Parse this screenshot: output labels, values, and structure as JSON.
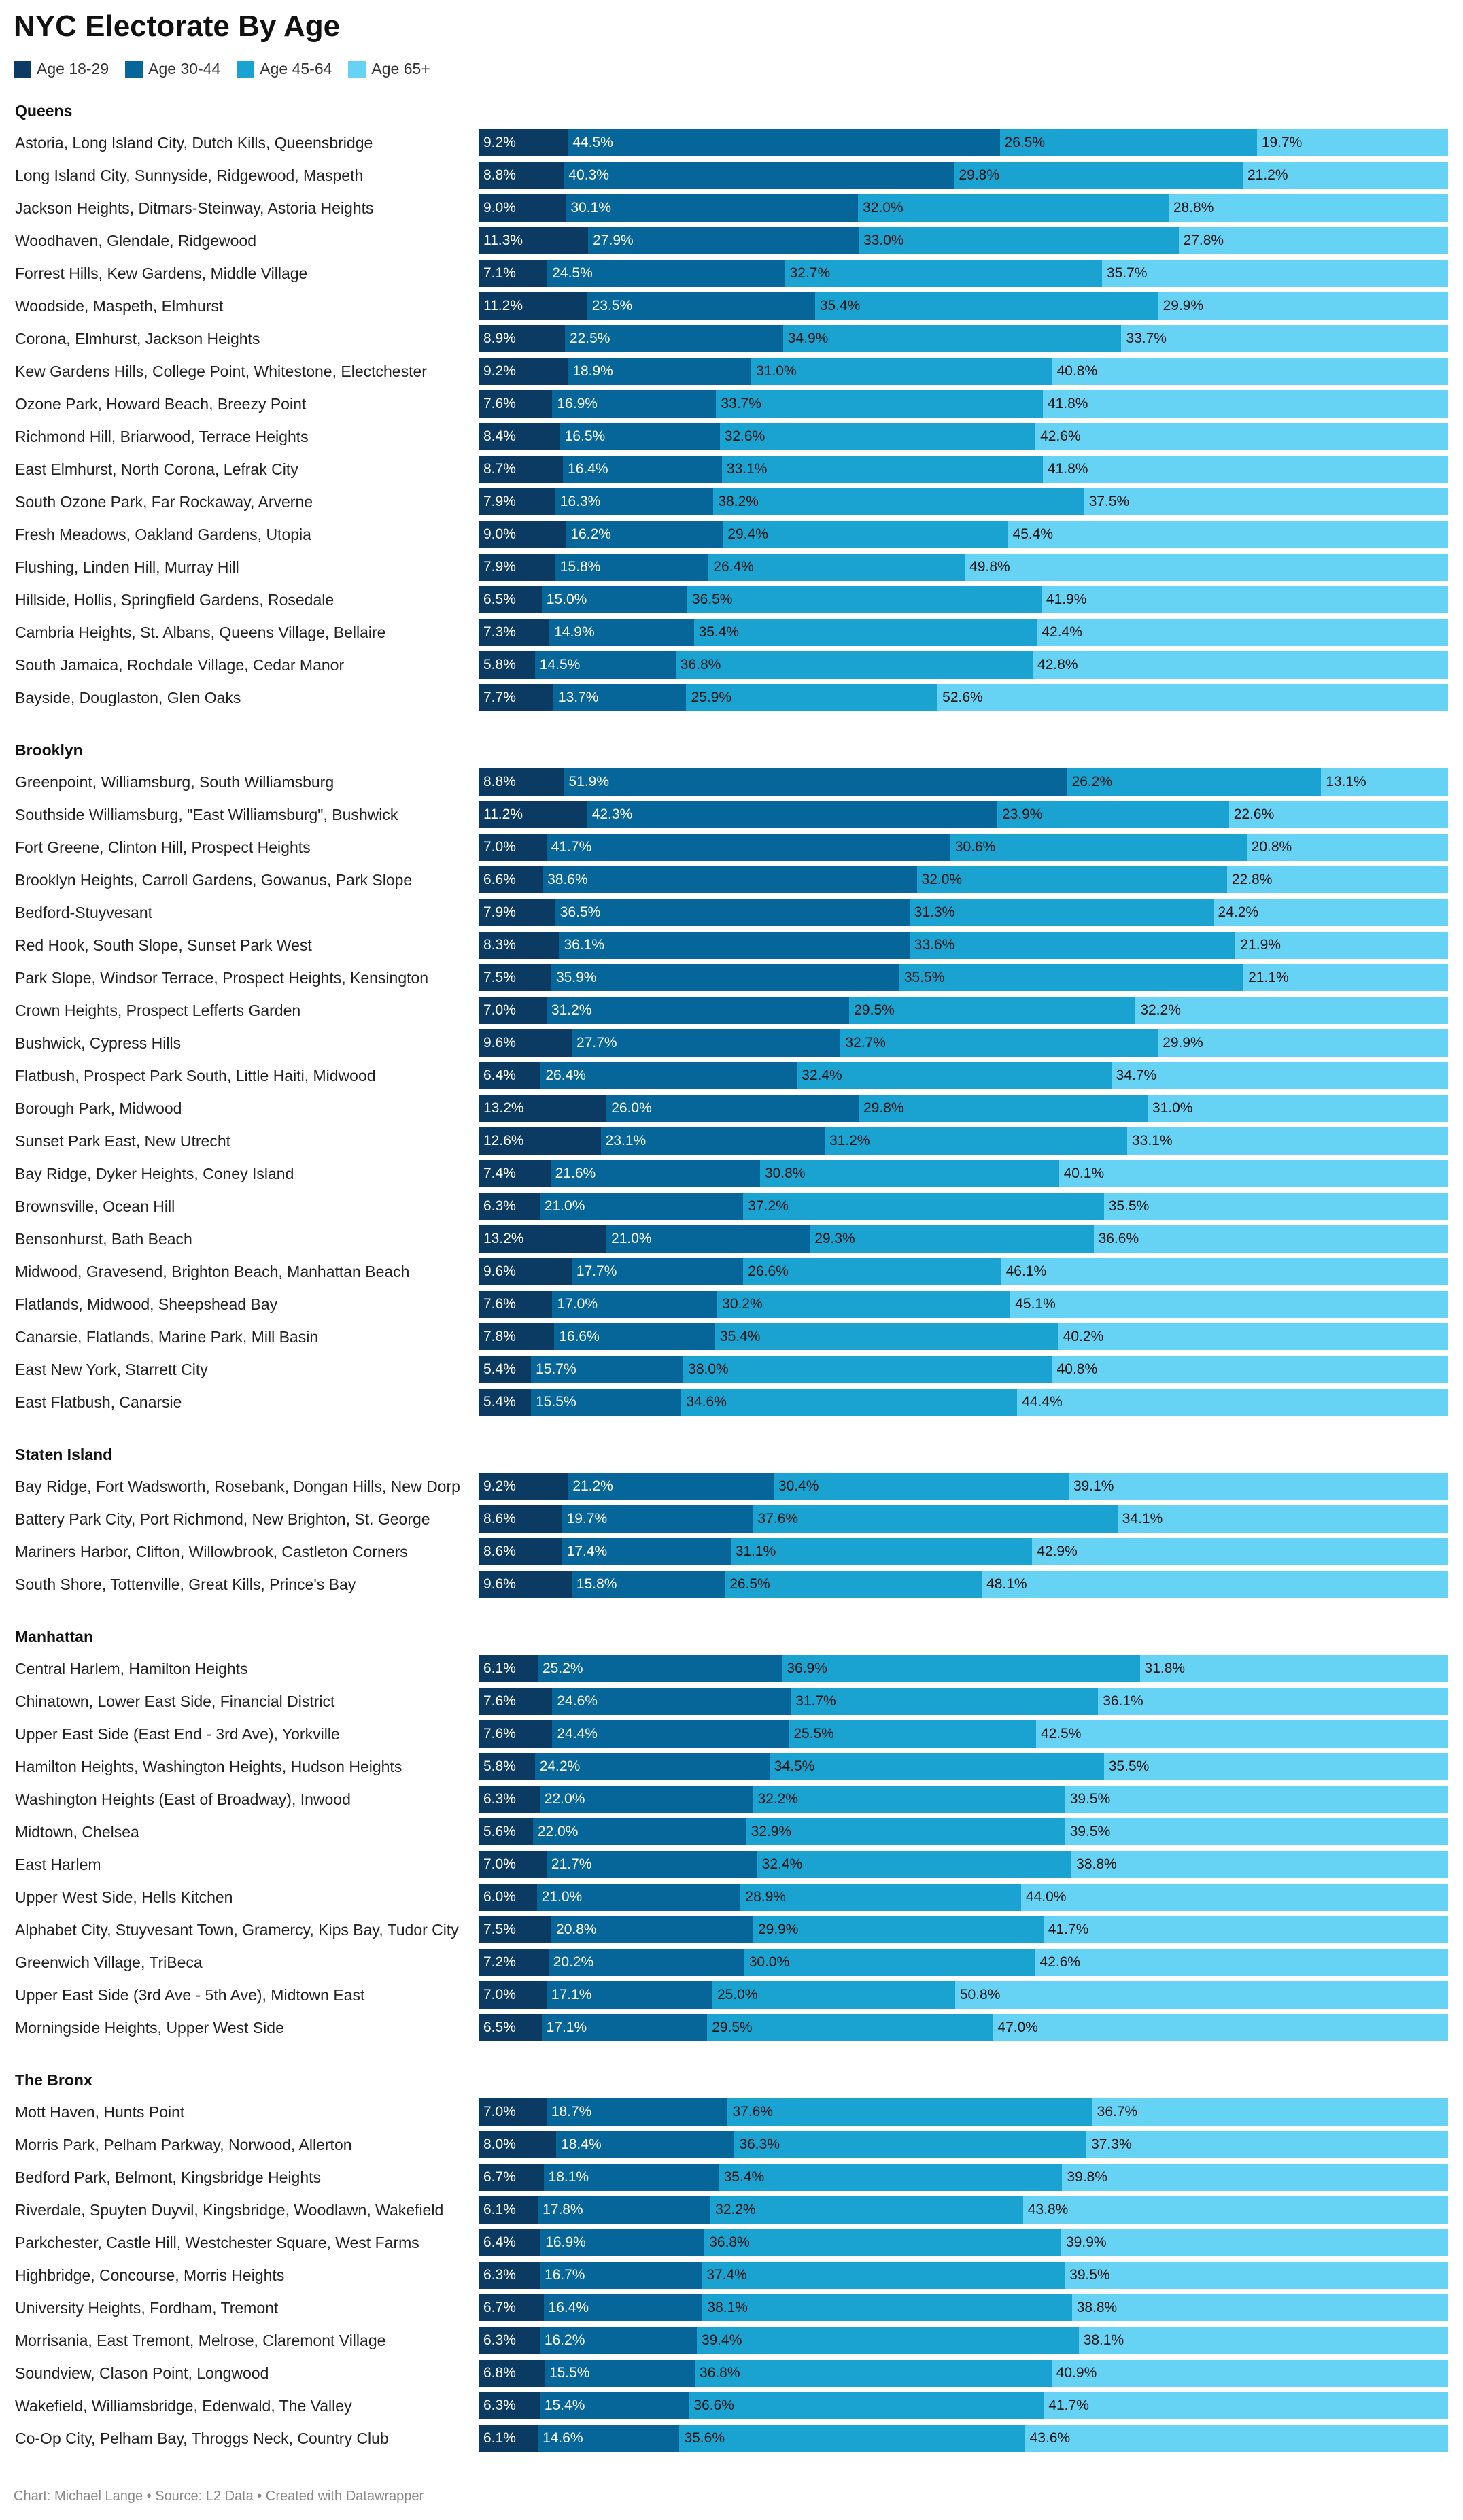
{
  "title": "NYC Electorate By Age",
  "legend": [
    "Age 18-29",
    "Age 30-44",
    "Age 45-64",
    "Age 65+"
  ],
  "colors": [
    "#0b3b63",
    "#066699",
    "#1aa2d0",
    "#66d3f5"
  ],
  "source": "Chart: Michael Lange • Source: L2 Data • Created with Datawrapper",
  "chart_data": {
    "type": "bar",
    "stacked": true,
    "orientation": "horizontal",
    "unit": "%",
    "series_names": [
      "Age 18-29",
      "Age 30-44",
      "Age 45-64",
      "Age 65+"
    ],
    "groups": [
      {
        "name": "Queens",
        "rows": [
          {
            "label": "Astoria, Long Island City, Dutch Kills, Queensbridge",
            "values": [
              9.2,
              44.5,
              26.5,
              19.7
            ]
          },
          {
            "label": "Long Island City, Sunnyside, Ridgewood, Maspeth",
            "values": [
              8.8,
              40.3,
              29.8,
              21.2
            ]
          },
          {
            "label": "Jackson Heights, Ditmars-Steinway, Astoria Heights",
            "values": [
              9.0,
              30.1,
              32.0,
              28.8
            ]
          },
          {
            "label": "Woodhaven, Glendale, Ridgewood",
            "values": [
              11.3,
              27.9,
              33.0,
              27.8
            ]
          },
          {
            "label": "Forrest Hills, Kew Gardens, Middle Village",
            "values": [
              7.1,
              24.5,
              32.7,
              35.7
            ]
          },
          {
            "label": "Woodside, Maspeth, Elmhurst",
            "values": [
              11.2,
              23.5,
              35.4,
              29.9
            ]
          },
          {
            "label": "Corona, Elmhurst, Jackson Heights",
            "values": [
              8.9,
              22.5,
              34.9,
              33.7
            ]
          },
          {
            "label": "Kew Gardens Hills, College Point, Whitestone, Electchester",
            "values": [
              9.2,
              18.9,
              31.0,
              40.8
            ]
          },
          {
            "label": "Ozone Park, Howard Beach, Breezy Point",
            "values": [
              7.6,
              16.9,
              33.7,
              41.8
            ]
          },
          {
            "label": "Richmond Hill, Briarwood, Terrace Heights",
            "values": [
              8.4,
              16.5,
              32.6,
              42.6
            ]
          },
          {
            "label": "East Elmhurst, North Corona, Lefrak City",
            "values": [
              8.7,
              16.4,
              33.1,
              41.8
            ]
          },
          {
            "label": "South Ozone Park, Far Rockaway, Arverne",
            "values": [
              7.9,
              16.3,
              38.2,
              37.5
            ]
          },
          {
            "label": "Fresh Meadows, Oakland Gardens, Utopia",
            "values": [
              9.0,
              16.2,
              29.4,
              45.4
            ]
          },
          {
            "label": "Flushing, Linden Hill, Murray Hill",
            "values": [
              7.9,
              15.8,
              26.4,
              49.8
            ]
          },
          {
            "label": "Hillside, Hollis, Springfield Gardens, Rosedale",
            "values": [
              6.5,
              15.0,
              36.5,
              41.9
            ]
          },
          {
            "label": "Cambria Heights, St. Albans, Queens Village, Bellaire",
            "values": [
              7.3,
              14.9,
              35.4,
              42.4
            ]
          },
          {
            "label": "South Jamaica, Rochdale Village, Cedar Manor",
            "values": [
              5.8,
              14.5,
              36.8,
              42.8
            ]
          },
          {
            "label": "Bayside, Douglaston, Glen Oaks",
            "values": [
              7.7,
              13.7,
              25.9,
              52.6
            ]
          }
        ]
      },
      {
        "name": "Brooklyn",
        "rows": [
          {
            "label": "Greenpoint, Williamsburg, South Williamsburg",
            "values": [
              8.8,
              51.9,
              26.2,
              13.1
            ]
          },
          {
            "label": "Southside Williamsburg, \"East Williamsburg\", Bushwick",
            "values": [
              11.2,
              42.3,
              23.9,
              22.6
            ]
          },
          {
            "label": "Fort Greene, Clinton Hill, Prospect Heights",
            "values": [
              7.0,
              41.7,
              30.6,
              20.8
            ]
          },
          {
            "label": "Brooklyn Heights, Carroll Gardens, Gowanus, Park Slope",
            "values": [
              6.6,
              38.6,
              32.0,
              22.8
            ]
          },
          {
            "label": "Bedford-Stuyvesant",
            "values": [
              7.9,
              36.5,
              31.3,
              24.2
            ]
          },
          {
            "label": "Red Hook, South Slope, Sunset Park West",
            "values": [
              8.3,
              36.1,
              33.6,
              21.9
            ]
          },
          {
            "label": "Park Slope, Windsor Terrace, Prospect Heights, Kensington",
            "values": [
              7.5,
              35.9,
              35.5,
              21.1
            ]
          },
          {
            "label": "Crown Heights, Prospect Lefferts Garden",
            "values": [
              7.0,
              31.2,
              29.5,
              32.2
            ]
          },
          {
            "label": "Bushwick, Cypress Hills",
            "values": [
              9.6,
              27.7,
              32.7,
              29.9
            ]
          },
          {
            "label": "Flatbush, Prospect Park South, Little Haiti, Midwood",
            "values": [
              6.4,
              26.4,
              32.4,
              34.7
            ]
          },
          {
            "label": "Borough Park, Midwood",
            "values": [
              13.2,
              26.0,
              29.8,
              31.0
            ]
          },
          {
            "label": "Sunset Park East, New Utrecht",
            "values": [
              12.6,
              23.1,
              31.2,
              33.1
            ]
          },
          {
            "label": "Bay Ridge, Dyker Heights, Coney Island",
            "values": [
              7.4,
              21.6,
              30.8,
              40.1
            ]
          },
          {
            "label": "Brownsville, Ocean Hill",
            "values": [
              6.3,
              21.0,
              37.2,
              35.5
            ]
          },
          {
            "label": "Bensonhurst, Bath Beach",
            "values": [
              13.2,
              21.0,
              29.3,
              36.6
            ]
          },
          {
            "label": "Midwood, Gravesend, Brighton Beach, Manhattan Beach",
            "values": [
              9.6,
              17.7,
              26.6,
              46.1
            ]
          },
          {
            "label": "Flatlands, Midwood, Sheepshead Bay",
            "values": [
              7.6,
              17.0,
              30.2,
              45.1
            ]
          },
          {
            "label": "Canarsie, Flatlands, Marine Park, Mill Basin",
            "values": [
              7.8,
              16.6,
              35.4,
              40.2
            ]
          },
          {
            "label": "East New York, Starrett City",
            "values": [
              5.4,
              15.7,
              38.0,
              40.8
            ]
          },
          {
            "label": "East Flatbush, Canarsie",
            "values": [
              5.4,
              15.5,
              34.6,
              44.4
            ]
          }
        ]
      },
      {
        "name": "Staten Island",
        "rows": [
          {
            "label": "Bay Ridge, Fort Wadsworth, Rosebank, Dongan Hills, New Dorp",
            "values": [
              9.2,
              21.2,
              30.4,
              39.1
            ]
          },
          {
            "label": "Battery Park City, Port Richmond, New Brighton, St. George",
            "values": [
              8.6,
              19.7,
              37.6,
              34.1
            ]
          },
          {
            "label": "Mariners Harbor, Clifton, Willowbrook, Castleton Corners",
            "values": [
              8.6,
              17.4,
              31.1,
              42.9
            ]
          },
          {
            "label": "South Shore, Tottenville, Great Kills, Prince's Bay",
            "values": [
              9.6,
              15.8,
              26.5,
              48.1
            ]
          }
        ]
      },
      {
        "name": "Manhattan",
        "rows": [
          {
            "label": "Central Harlem, Hamilton Heights",
            "values": [
              6.1,
              25.2,
              36.9,
              31.8
            ]
          },
          {
            "label": "Chinatown, Lower East Side, Financial District",
            "values": [
              7.6,
              24.6,
              31.7,
              36.1
            ]
          },
          {
            "label": "Upper East Side (East End - 3rd Ave), Yorkville",
            "values": [
              7.6,
              24.4,
              25.5,
              42.5
            ]
          },
          {
            "label": "Hamilton Heights, Washington Heights, Hudson Heights",
            "values": [
              5.8,
              24.2,
              34.5,
              35.5
            ]
          },
          {
            "label": "Washington Heights (East of Broadway), Inwood",
            "values": [
              6.3,
              22.0,
              32.2,
              39.5
            ]
          },
          {
            "label": "Midtown, Chelsea",
            "values": [
              5.6,
              22.0,
              32.9,
              39.5
            ]
          },
          {
            "label": "East Harlem",
            "values": [
              7.0,
              21.7,
              32.4,
              38.8
            ]
          },
          {
            "label": "Upper West Side, Hells Kitchen",
            "values": [
              6.0,
              21.0,
              28.9,
              44.0
            ]
          },
          {
            "label": "Alphabet City, Stuyvesant Town, Gramercy, Kips Bay, Tudor City",
            "values": [
              7.5,
              20.8,
              29.9,
              41.7
            ]
          },
          {
            "label": "Greenwich Village, TriBeca",
            "values": [
              7.2,
              20.2,
              30.0,
              42.6
            ]
          },
          {
            "label": "Upper East Side (3rd Ave - 5th Ave), Midtown East",
            "values": [
              7.0,
              17.1,
              25.0,
              50.8
            ]
          },
          {
            "label": "Morningside Heights, Upper West Side",
            "values": [
              6.5,
              17.1,
              29.5,
              47.0
            ]
          }
        ]
      },
      {
        "name": "The Bronx",
        "rows": [
          {
            "label": "Mott Haven, Hunts Point",
            "values": [
              7.0,
              18.7,
              37.6,
              36.7
            ]
          },
          {
            "label": "Morris Park, Pelham Parkway, Norwood, Allerton",
            "values": [
              8.0,
              18.4,
              36.3,
              37.3
            ]
          },
          {
            "label": "Bedford Park, Belmont, Kingsbridge Heights",
            "values": [
              6.7,
              18.1,
              35.4,
              39.8
            ]
          },
          {
            "label": "Riverdale, Spuyten Duyvil, Kingsbridge, Woodlawn, Wakefield",
            "values": [
              6.1,
              17.8,
              32.2,
              43.8
            ]
          },
          {
            "label": "Parkchester, Castle Hill, Westchester Square, West Farms",
            "values": [
              6.4,
              16.9,
              36.8,
              39.9
            ]
          },
          {
            "label": "Highbridge, Concourse, Morris Heights",
            "values": [
              6.3,
              16.7,
              37.4,
              39.5
            ]
          },
          {
            "label": "University Heights, Fordham, Tremont",
            "values": [
              6.7,
              16.4,
              38.1,
              38.8
            ]
          },
          {
            "label": "Morrisania, East Tremont, Melrose, Claremont Village",
            "values": [
              6.3,
              16.2,
              39.4,
              38.1
            ]
          },
          {
            "label": "Soundview, Clason Point, Longwood",
            "values": [
              6.8,
              15.5,
              36.8,
              40.9
            ]
          },
          {
            "label": "Wakefield, Williamsbridge, Edenwald, The Valley",
            "values": [
              6.3,
              15.4,
              36.6,
              41.7
            ]
          },
          {
            "label": "Co-Op City, Pelham Bay, Throggs Neck, Country Club",
            "values": [
              6.1,
              14.6,
              35.6,
              43.6
            ]
          }
        ]
      }
    ]
  }
}
